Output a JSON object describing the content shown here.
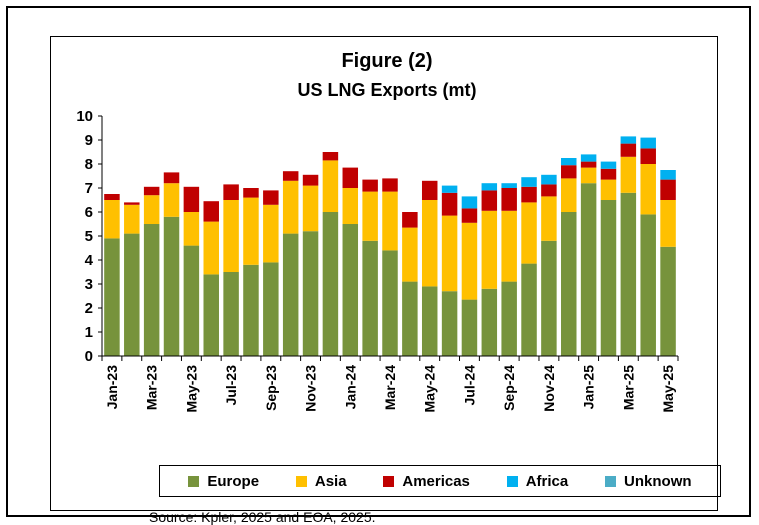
{
  "source": "Source: Kpler, 2025 and EOA, 2025.",
  "colors": {
    "Europe": "#77933c",
    "Asia": "#ffc000",
    "Americas": "#c00000",
    "Africa": "#00b0f0",
    "Unknown": "#4bacc6"
  },
  "chart_data": {
    "type": "bar",
    "stacked": true,
    "title": "Figure (2)",
    "subtitle": "US LNG Exports (mt)",
    "xlabel": "",
    "ylabel": "",
    "ylim": [
      0,
      10
    ],
    "yticks": [
      0,
      1,
      2,
      3,
      4,
      5,
      6,
      7,
      8,
      9,
      10
    ],
    "grid": false,
    "legend_position": "bottom",
    "categories": [
      "Jan-23",
      "Feb-23",
      "Mar-23",
      "Apr-23",
      "May-23",
      "Jun-23",
      "Jul-23",
      "Aug-23",
      "Sep-23",
      "Oct-23",
      "Nov-23",
      "Dec-23",
      "Jan-24",
      "Feb-24",
      "Mar-24",
      "Apr-24",
      "May-24",
      "Jun-24",
      "Jul-24",
      "Aug-24",
      "Sep-24",
      "Oct-24",
      "Nov-24",
      "Dec-24",
      "Jan-25",
      "Feb-25",
      "Mar-25",
      "Apr-25",
      "May-25"
    ],
    "tick_labels": [
      "Jan-23",
      "",
      "Mar-23",
      "",
      "May-23",
      "",
      "Jul-23",
      "",
      "Sep-23",
      "",
      "Nov-23",
      "",
      "Jan-24",
      "",
      "Mar-24",
      "",
      "May-24",
      "",
      "Jul-24",
      "",
      "Sep-24",
      "",
      "Nov-24",
      "",
      "Jan-25",
      "",
      "Mar-25",
      "",
      "May-25"
    ],
    "series": [
      {
        "name": "Europe",
        "values": [
          4.9,
          5.1,
          5.5,
          5.8,
          4.6,
          3.4,
          3.5,
          3.8,
          3.9,
          5.1,
          5.2,
          6.0,
          5.5,
          4.8,
          4.4,
          3.1,
          2.9,
          2.7,
          2.35,
          2.8,
          3.1,
          3.85,
          4.8,
          6.0,
          7.2,
          6.5,
          6.8,
          5.9,
          4.55
        ]
      },
      {
        "name": "Asia",
        "values": [
          1.6,
          1.2,
          1.2,
          1.4,
          1.4,
          2.2,
          3.0,
          2.8,
          2.4,
          2.2,
          1.9,
          2.15,
          1.5,
          2.05,
          2.45,
          2.25,
          3.6,
          3.15,
          3.2,
          3.25,
          2.95,
          2.55,
          1.85,
          1.4,
          0.65,
          0.85,
          1.5,
          2.1,
          1.95
        ]
      },
      {
        "name": "Americas",
        "values": [
          0.25,
          0.1,
          0.35,
          0.45,
          1.05,
          0.85,
          0.65,
          0.4,
          0.6,
          0.4,
          0.45,
          0.35,
          0.85,
          0.5,
          0.55,
          0.65,
          0.8,
          0.95,
          0.6,
          0.85,
          0.95,
          0.65,
          0.5,
          0.55,
          0.25,
          0.45,
          0.55,
          0.65,
          0.85
        ]
      },
      {
        "name": "Africa",
        "values": [
          0,
          0,
          0,
          0,
          0,
          0,
          0,
          0,
          0,
          0,
          0,
          0,
          0,
          0,
          0,
          0,
          0,
          0.3,
          0.5,
          0.3,
          0.2,
          0.4,
          0.4,
          0.3,
          0.3,
          0.3,
          0.3,
          0.45,
          0.4
        ]
      },
      {
        "name": "Unknown",
        "values": [
          0,
          0,
          0,
          0,
          0,
          0,
          0,
          0,
          0,
          0,
          0,
          0,
          0,
          0,
          0,
          0,
          0,
          0,
          0,
          0,
          0,
          0,
          0,
          0,
          0,
          0,
          0,
          0,
          0
        ]
      }
    ]
  }
}
